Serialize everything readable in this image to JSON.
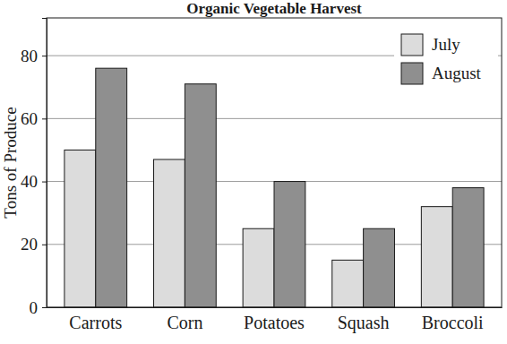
{
  "chart_data": {
    "type": "bar",
    "title": "Organic Vegetable Harvest",
    "y_label": "Tons of Produce",
    "categories": [
      "Carrots",
      "Corn",
      "Potatoes",
      "Squash",
      "Broccoli"
    ],
    "series": [
      {
        "name": "July",
        "color": "#dcdcdc",
        "values": [
          50,
          47,
          25,
          15,
          32
        ]
      },
      {
        "name": "August",
        "color": "#8f8f8f",
        "values": [
          76,
          71,
          40,
          25,
          38
        ]
      }
    ],
    "ylim": [
      0,
      92
    ],
    "yticks": [
      0,
      20,
      40,
      60,
      80
    ],
    "grid": true,
    "legend": "top-right"
  }
}
